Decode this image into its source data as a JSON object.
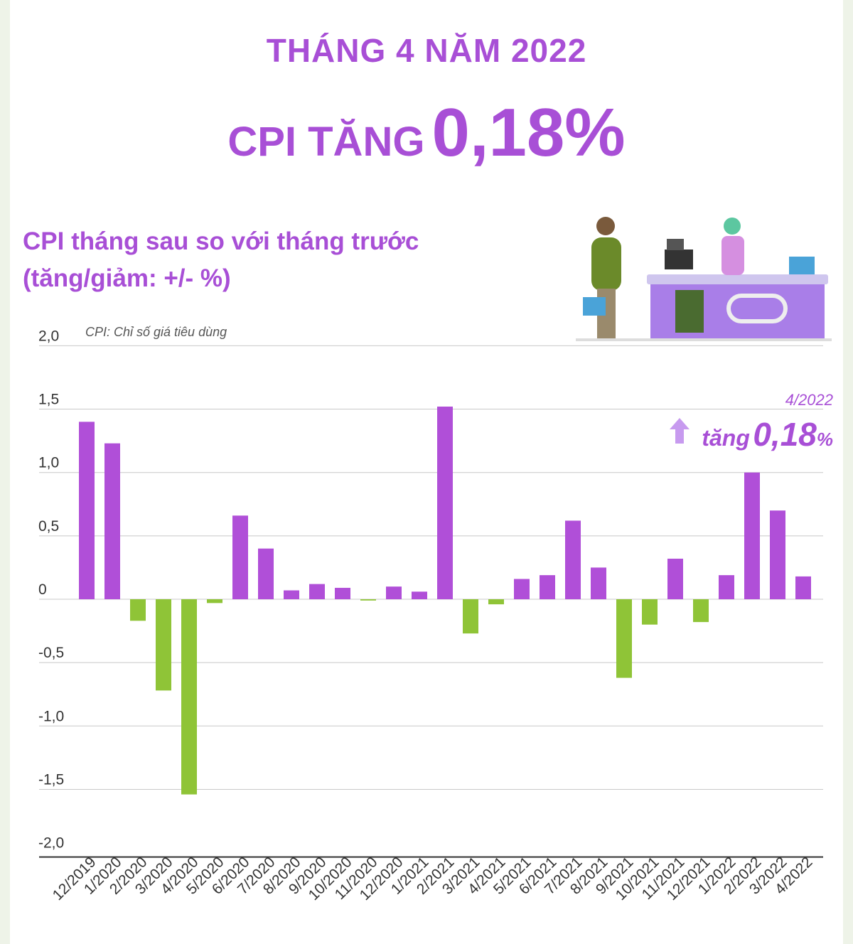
{
  "header": {
    "month_title": "THÁNG 4 NĂM 2022",
    "cpi_label": "CPI TĂNG",
    "cpi_value": "0,18%"
  },
  "subtitle": {
    "line1": "CPI tháng sau so với tháng trước",
    "line2": "(tăng/giảm: +/- %)"
  },
  "note": "CPI: Chỉ số giá tiêu dùng",
  "annotation": {
    "date": "4/2022",
    "word": "tăng",
    "value": "0,18",
    "unit": "%",
    "icon": "arrow-up-icon"
  },
  "colors": {
    "positive": "#b04fd8",
    "negative": "#8fc437",
    "title": "#a84fd6"
  },
  "chart_data": {
    "type": "bar",
    "ylim": [
      -2.0,
      2.0
    ],
    "yticks": [
      2.0,
      1.5,
      1.0,
      0.5,
      0,
      -0.5,
      -1.0,
      -1.5,
      -2.0
    ],
    "ytick_labels": [
      "2,0",
      "1,5",
      "1,0",
      "0,5",
      "0",
      "-0,5",
      "-1,0",
      "-1,5",
      "-2,0"
    ],
    "grid": true,
    "categories": [
      "12/2019",
      "1/2020",
      "2/2020",
      "3/2020",
      "4/2020",
      "5/2020",
      "6/2020",
      "7/2020",
      "8/2020",
      "9/2020",
      "10/2020",
      "11/2020",
      "12/2020",
      "1/2021",
      "2/2021",
      "3/2021",
      "4/2021",
      "5/2021",
      "6/2021",
      "7/2021",
      "8/2021",
      "9/2021",
      "10/2021",
      "11/2021",
      "12/2021",
      "1/2022",
      "2/2022",
      "3/2022",
      "4/2022"
    ],
    "values": [
      1.4,
      1.23,
      -0.17,
      -0.72,
      -1.54,
      -0.03,
      0.66,
      0.4,
      0.07,
      0.12,
      0.09,
      -0.01,
      0.1,
      0.06,
      1.52,
      -0.27,
      -0.04,
      0.16,
      0.19,
      0.62,
      0.25,
      -0.62,
      -0.2,
      0.32,
      -0.18,
      0.19,
      1.0,
      0.7,
      0.18
    ]
  }
}
